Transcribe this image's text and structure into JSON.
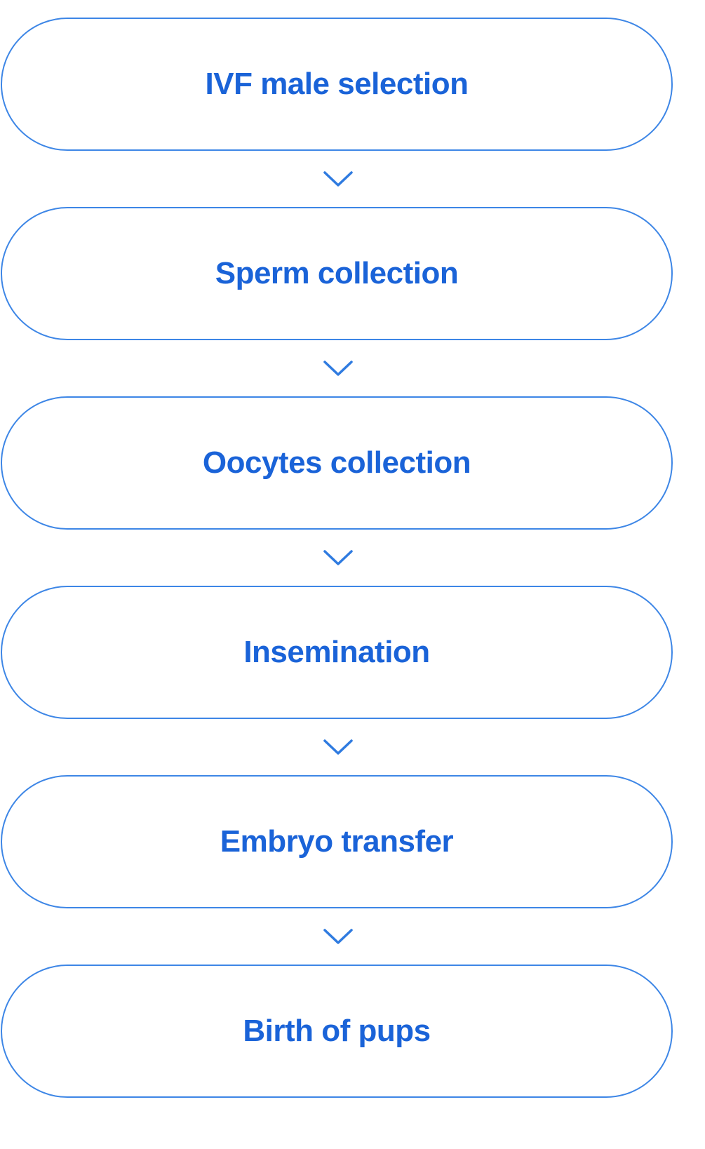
{
  "colors": {
    "border": "#3d86e6",
    "text": "#1a63d8",
    "arrow": "#2f7be0",
    "background": "#ffffff"
  },
  "steps": [
    {
      "label": "IVF male selection"
    },
    {
      "label": "Sperm collection"
    },
    {
      "label": "Oocytes collection"
    },
    {
      "label": "Insemination"
    },
    {
      "label": "Embryo transfer"
    },
    {
      "label": "Birth of pups"
    }
  ],
  "connector_icon": "chevron-down-icon"
}
